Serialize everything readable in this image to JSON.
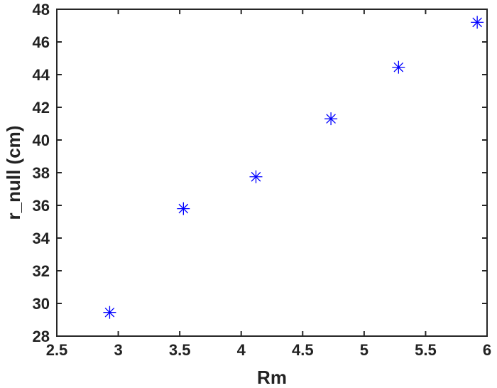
{
  "chart_data": {
    "type": "scatter",
    "title": "",
    "xlabel": "Rm",
    "ylabel": "r_null (cm)",
    "xlim": [
      2.5,
      6
    ],
    "ylim": [
      28,
      48
    ],
    "xticks": [
      2.5,
      3,
      3.5,
      4,
      4.5,
      5,
      5.5,
      6
    ],
    "xtick_labels": [
      "2.5",
      "3",
      "3.5",
      "4",
      "4.5",
      "5",
      "5.5",
      "6"
    ],
    "yticks": [
      28,
      30,
      32,
      34,
      36,
      38,
      40,
      42,
      44,
      46,
      48
    ],
    "ytick_labels": [
      "28",
      "30",
      "32",
      "34",
      "36",
      "38",
      "40",
      "42",
      "44",
      "46",
      "48"
    ],
    "grid": false,
    "marker": "asterisk",
    "marker_color": "#0000ff",
    "series": [
      {
        "x": [
          2.93,
          3.53,
          4.12,
          4.73,
          5.28,
          5.92
        ],
        "y": [
          29.45,
          35.8,
          37.75,
          41.3,
          44.45,
          47.2
        ]
      }
    ]
  }
}
